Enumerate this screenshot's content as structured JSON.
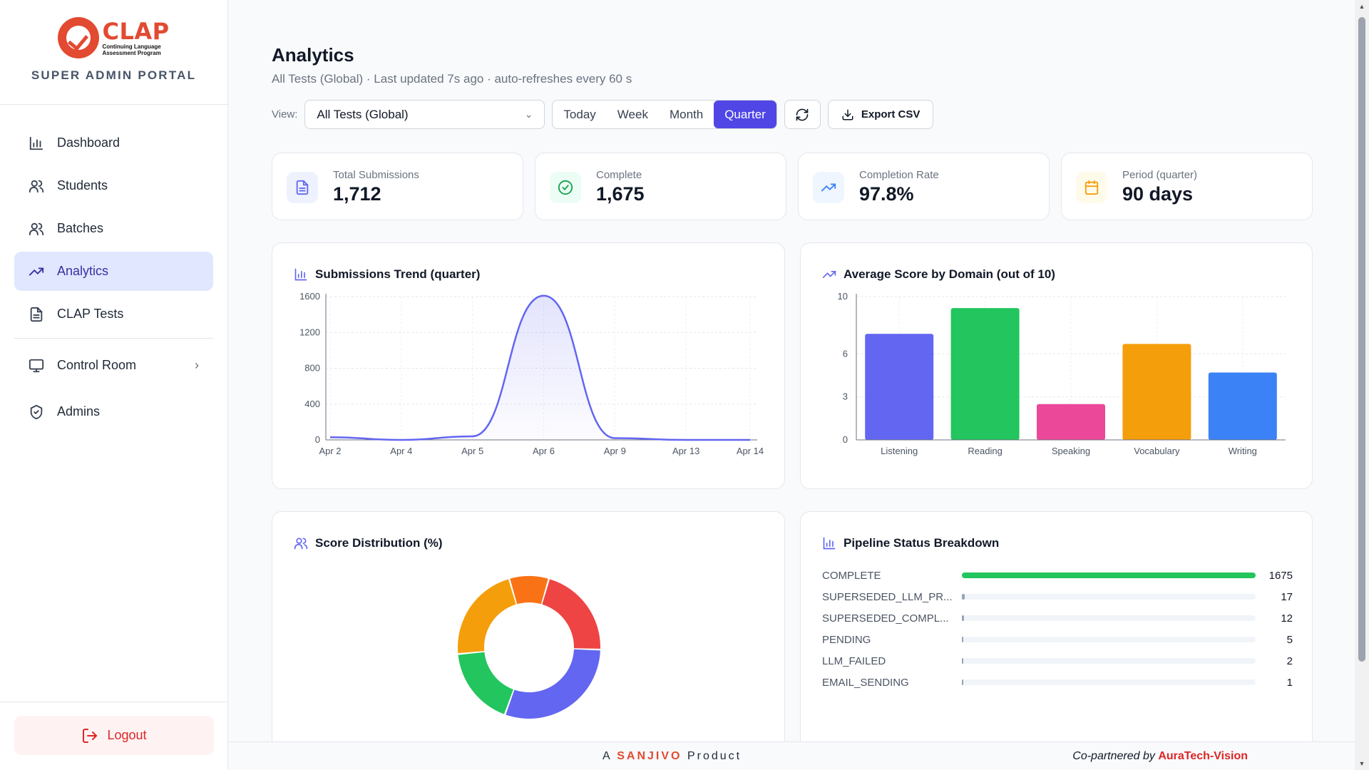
{
  "brand": {
    "logo_word": "CLAP",
    "logo_sub_1": "Continuing Language",
    "logo_sub_2": "Assessment Program",
    "portal_title": "SUPER ADMIN PORTAL"
  },
  "sidebar": {
    "items": [
      {
        "label": "Dashboard",
        "icon": "bar-chart-icon"
      },
      {
        "label": "Students",
        "icon": "users-icon"
      },
      {
        "label": "Batches",
        "icon": "users-icon"
      },
      {
        "label": "Analytics",
        "icon": "trending-up-icon",
        "active": true
      },
      {
        "label": "CLAP Tests",
        "icon": "file-text-icon"
      },
      {
        "label": "Control Room",
        "icon": "monitor-icon"
      },
      {
        "label": "Admins",
        "icon": "shield-icon"
      }
    ],
    "logout_label": "Logout"
  },
  "header": {
    "title": "Analytics",
    "subtitle": "All Tests (Global) · Last updated 7s ago · auto-refreshes every 60 s"
  },
  "toolbar": {
    "view_label": "View:",
    "view_value": "All Tests (Global)",
    "periods": [
      "Today",
      "Week",
      "Month",
      "Quarter"
    ],
    "active_period": "Quarter",
    "export_label": "Export CSV"
  },
  "stats": [
    {
      "label": "Total Submissions",
      "value": "1,712",
      "icon": "document-icon",
      "color": "#6366f1",
      "bg": "#eef2ff"
    },
    {
      "label": "Complete",
      "value": "1,675",
      "icon": "check-circle-icon",
      "color": "#16a34a",
      "bg": "#ecfdf5"
    },
    {
      "label": "Completion Rate",
      "value": "97.8%",
      "icon": "trending-up-icon",
      "color": "#3b82f6",
      "bg": "#eff6ff"
    },
    {
      "label": "Period (quarter)",
      "value": "90 days",
      "icon": "calendar-icon",
      "color": "#f59e0b",
      "bg": "#fffbeb"
    }
  ],
  "panels": {
    "trend_title": "Submissions Trend (quarter)",
    "domain_title": "Average Score by Domain (out of 10)",
    "distribution_title": "Score Distribution (%)",
    "pipeline_title": "Pipeline Status Breakdown"
  },
  "chart_data": [
    {
      "type": "area",
      "title": "Submissions Trend (quarter)",
      "categories": [
        "Apr 2",
        "Apr 4",
        "Apr 5",
        "Apr 6",
        "Apr 9",
        "Apr 13",
        "Apr 14"
      ],
      "values": [
        30,
        0,
        40,
        1610,
        20,
        0,
        0
      ],
      "yticks": [
        0,
        400,
        800,
        1200,
        1600
      ],
      "ylim": [
        0,
        1600
      ],
      "color": "#6366f1",
      "grid": true
    },
    {
      "type": "bar",
      "title": "Average Score by Domain (out of 10)",
      "categories": [
        "Listening",
        "Reading",
        "Speaking",
        "Vocabulary",
        "Writing"
      ],
      "values": [
        7.4,
        9.2,
        2.5,
        6.7,
        4.7
      ],
      "colors": [
        "#6366f1",
        "#22c55e",
        "#ec4899",
        "#f59e0b",
        "#3b82f6"
      ],
      "yticks": [
        0,
        3,
        6,
        10
      ],
      "ylim": [
        0,
        10
      ],
      "grid": true
    },
    {
      "type": "pie",
      "title": "Score Distribution (%)",
      "values": [
        9,
        21,
        30,
        18,
        22
      ],
      "colors": [
        "#f97316",
        "#ef4444",
        "#6366f1",
        "#22c55e",
        "#f59e0b"
      ],
      "donut": true
    }
  ],
  "pipeline": [
    {
      "label": "COMPLETE",
      "value": 1675,
      "display": "1675"
    },
    {
      "label": "SUPERSEDED_LLM_PR...",
      "value": 17,
      "display": "17"
    },
    {
      "label": "SUPERSEDED_COMPL...",
      "value": 12,
      "display": "12"
    },
    {
      "label": "PENDING",
      "value": 5,
      "display": "5"
    },
    {
      "label": "LLM_FAILED",
      "value": 2,
      "display": "2"
    },
    {
      "label": "EMAIL_SENDING",
      "value": 1,
      "display": "1"
    }
  ],
  "footer": {
    "prefix": "A",
    "brand": "SANJIVO",
    "suffix": "Product",
    "partner_prefix": "Co-partnered by",
    "partner": "AuraTech-Vision"
  }
}
